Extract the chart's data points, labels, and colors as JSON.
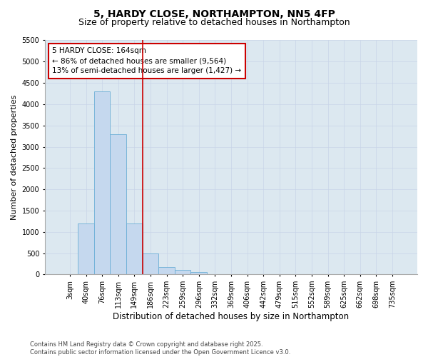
{
  "title1": "5, HARDY CLOSE, NORTHAMPTON, NN5 4FP",
  "title2": "Size of property relative to detached houses in Northampton",
  "xlabel": "Distribution of detached houses by size in Northampton",
  "ylabel": "Number of detached properties",
  "categories": [
    "3sqm",
    "40sqm",
    "76sqm",
    "113sqm",
    "149sqm",
    "186sqm",
    "223sqm",
    "259sqm",
    "296sqm",
    "332sqm",
    "369sqm",
    "406sqm",
    "442sqm",
    "479sqm",
    "515sqm",
    "552sqm",
    "589sqm",
    "625sqm",
    "662sqm",
    "698sqm",
    "735sqm"
  ],
  "values": [
    0,
    1200,
    4300,
    3300,
    1200,
    500,
    175,
    110,
    60,
    0,
    0,
    0,
    0,
    0,
    0,
    0,
    0,
    0,
    0,
    0,
    0
  ],
  "bar_color": "#c5d8ee",
  "bar_edge_color": "#6baed6",
  "vline_x_idx": 4.5,
  "vline_color": "#cc0000",
  "annotation_line1": "5 HARDY CLOSE: 164sqm",
  "annotation_line2": "← 86% of detached houses are smaller (9,564)",
  "annotation_line3": "13% of semi-detached houses are larger (1,427) →",
  "annotation_box_color": "#cc0000",
  "ylim": [
    0,
    5500
  ],
  "yticks": [
    0,
    500,
    1000,
    1500,
    2000,
    2500,
    3000,
    3500,
    4000,
    4500,
    5000,
    5500
  ],
  "grid_color": "#c8d4e8",
  "background_color": "#dce8f0",
  "footer": "Contains HM Land Registry data © Crown copyright and database right 2025.\nContains public sector information licensed under the Open Government Licence v3.0.",
  "title1_fontsize": 10,
  "title2_fontsize": 9,
  "xlabel_fontsize": 8.5,
  "ylabel_fontsize": 8,
  "tick_fontsize": 7,
  "annotation_fontsize": 7.5,
  "footer_fontsize": 6
}
